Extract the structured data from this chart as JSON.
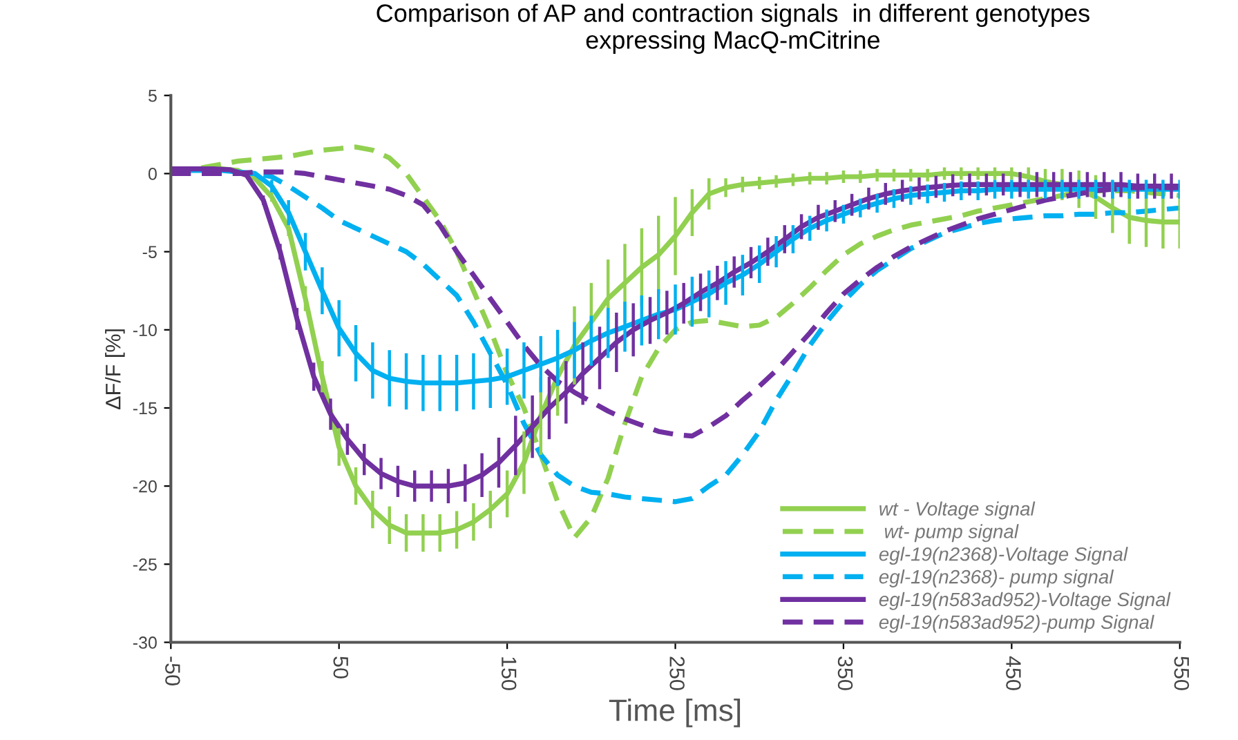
{
  "chart_data": {
    "type": "line",
    "title": "Comparison of AP and contraction signals  in different genotypes\nexpressing MacQ-mCitrine",
    "xlabel": "Time [ms]",
    "ylabel": "ΔF/F [%]",
    "x": [
      -50,
      -40,
      -30,
      -20,
      -10,
      0,
      10,
      20,
      30,
      40,
      50,
      60,
      70,
      80,
      90,
      100,
      110,
      120,
      130,
      140,
      150,
      160,
      170,
      180,
      190,
      200,
      210,
      220,
      230,
      240,
      250,
      260,
      270,
      280,
      290,
      300,
      310,
      320,
      330,
      340,
      350,
      360,
      370,
      380,
      390,
      400,
      410,
      420,
      430,
      440,
      450,
      460,
      470,
      480,
      490,
      500,
      510,
      520,
      530,
      540,
      550
    ],
    "xlim": [
      -50,
      550
    ],
    "xticks": [
      -50,
      50,
      150,
      250,
      350,
      450,
      550
    ],
    "ylim": [
      -30,
      5
    ],
    "yticks": [
      5,
      0,
      -5,
      -10,
      -15,
      -20,
      -25,
      -30
    ],
    "grid": false,
    "legend": "bottom right",
    "series": [
      {
        "name": "wt - Voltage signal",
        "color": "#92d050",
        "line_style": "solid",
        "values": [
          0.3,
          0.3,
          0.3,
          0.3,
          0.2,
          -0.3,
          -1.5,
          -3.5,
          -8,
          -13,
          -17.5,
          -20,
          -21.5,
          -22.5,
          -23,
          -23,
          -23,
          -22.8,
          -22.3,
          -21.5,
          -20.5,
          -18.5,
          -15.5,
          -13,
          -11,
          -9.5,
          -8,
          -7,
          -6,
          -5.2,
          -4,
          -2.5,
          -1.3,
          -0.9,
          -0.7,
          -0.6,
          -0.5,
          -0.4,
          -0.3,
          -0.3,
          -0.2,
          -0.2,
          -0.1,
          -0.1,
          -0.1,
          -0.1,
          0,
          0,
          0,
          0,
          0,
          -0.2,
          -0.5,
          -0.7,
          -1,
          -1.5,
          -2.2,
          -2.8,
          -3,
          -3.1,
          -3.1
        ],
        "errors": [
          null,
          null,
          null,
          null,
          null,
          null,
          0.3,
          0.5,
          0.8,
          1,
          1.2,
          1.2,
          1.2,
          1.2,
          1.2,
          1.2,
          1.2,
          1.2,
          1.2,
          1.2,
          1.5,
          2,
          2.5,
          2.5,
          2.5,
          2.5,
          2.5,
          2.5,
          2.5,
          2.5,
          2.5,
          1.5,
          1,
          0.6,
          0.5,
          0.4,
          0.4,
          0.4,
          0.4,
          0.4,
          0.4,
          0.4,
          0.4,
          0.4,
          0.4,
          0.4,
          0.4,
          0.4,
          0.4,
          0.4,
          0.4,
          0.6,
          0.8,
          1,
          1.2,
          1.4,
          1.6,
          1.7,
          1.7,
          1.7,
          1.7
        ]
      },
      {
        "name": " wt- pump signal",
        "color": "#92d050",
        "line_style": "dashed",
        "values": [
          0,
          0.2,
          0.4,
          0.6,
          0.8,
          0.9,
          1,
          1.1,
          1.3,
          1.5,
          1.6,
          1.7,
          1.5,
          1,
          0,
          -1.5,
          -3,
          -5,
          -7.5,
          -10,
          -12.8,
          -15,
          -18,
          -21,
          -23.3,
          -22,
          -19.5,
          -16,
          -13,
          -11.2,
          -10,
          -9.5,
          -9.4,
          -9.6,
          -9.8,
          -9.7,
          -9.2,
          -8.3,
          -7.3,
          -6.2,
          -5.2,
          -4.5,
          -4,
          -3.6,
          -3.3,
          -3.1,
          -2.9,
          -2.7,
          -2.4,
          -2.2,
          -2,
          -1.8,
          -1.6,
          -1.4,
          -1.2,
          -1.1,
          -1.1,
          -1.1,
          -1.2,
          -1.3,
          -1.4
        ]
      },
      {
        "name": "egl-19(n2368)-Voltage Signal",
        "color": "#00b0f0",
        "line_style": "solid",
        "values": [
          0.2,
          0.2,
          0.2,
          0.2,
          0.1,
          0,
          -0.8,
          -2.5,
          -5,
          -7.5,
          -9.9,
          -11.5,
          -12.6,
          -13.1,
          -13.3,
          -13.4,
          -13.4,
          -13.4,
          -13.3,
          -13.2,
          -13,
          -12.6,
          -12.2,
          -11.8,
          -11.3,
          -10.7,
          -10.2,
          -9.8,
          -9.4,
          -9,
          -8.7,
          -8.2,
          -7.7,
          -7,
          -6.5,
          -5.8,
          -5,
          -4.2,
          -3.5,
          -3,
          -2.6,
          -2.2,
          -1.9,
          -1.6,
          -1.4,
          -1.3,
          -1.2,
          -1.1,
          -1.1,
          -1,
          -1,
          -1,
          -1,
          -1,
          -1,
          -1,
          -1,
          -1,
          -1,
          -1,
          -1
        ],
        "errors": [
          null,
          null,
          null,
          null,
          null,
          null,
          0.4,
          0.8,
          1.2,
          1.5,
          1.8,
          1.8,
          1.8,
          1.8,
          1.8,
          1.8,
          1.8,
          1.8,
          1.8,
          1.8,
          1.8,
          1.8,
          1.8,
          1.8,
          1.8,
          1.6,
          1.6,
          1.6,
          1.6,
          1.6,
          1.6,
          1.6,
          1.5,
          1.4,
          1.3,
          1.2,
          1,
          0.9,
          0.8,
          0.7,
          0.6,
          0.6,
          0.6,
          0.6,
          0.6,
          0.6,
          0.6,
          0.6,
          0.6,
          0.6,
          0.6,
          0.6,
          0.6,
          0.6,
          0.6,
          0.6,
          0.6,
          0.6,
          0.6,
          0.6,
          0.6
        ]
      },
      {
        "name": "egl-19(n2368)- pump signal",
        "color": "#00b0f0",
        "line_style": "dashed",
        "values": [
          0,
          0,
          0,
          0,
          0,
          0,
          -0.2,
          -0.8,
          -1.5,
          -2.2,
          -3,
          -3.5,
          -4,
          -4.5,
          -5,
          -5.8,
          -6.8,
          -7.8,
          -9.5,
          -11.5,
          -13.5,
          -16,
          -18,
          -19.3,
          -20,
          -20.4,
          -20.5,
          -20.7,
          -20.8,
          -20.9,
          -21,
          -20.8,
          -20,
          -19.3,
          -18,
          -16.5,
          -14.5,
          -12.8,
          -11,
          -9.5,
          -8.2,
          -7.1,
          -6.2,
          -5.5,
          -4.8,
          -4.3,
          -3.8,
          -3.5,
          -3.2,
          -3,
          -2.9,
          -2.8,
          -2.7,
          -2.7,
          -2.6,
          -2.6,
          -2.5,
          -2.5,
          -2.4,
          -2.3,
          -2.2
        ]
      },
      {
        "name": "egl-19(n583ad952)-Voltage Signal",
        "color": "#7030a0",
        "line_style": "solid",
        "x": [
          -50,
          -45,
          -35,
          -25,
          -15,
          -5,
          5,
          15,
          25,
          35,
          45,
          55,
          65,
          75,
          85,
          95,
          105,
          115,
          125,
          135,
          145,
          155,
          165,
          175,
          185,
          195,
          205,
          215,
          225,
          235,
          245,
          255,
          265,
          275,
          285,
          295,
          305,
          315,
          325,
          335,
          345,
          355,
          365,
          375,
          385,
          395,
          405,
          415,
          425,
          435,
          445,
          455,
          465,
          475,
          485,
          495,
          505,
          515,
          525,
          535,
          545,
          550
        ],
        "values": [
          0.3,
          0.3,
          0.3,
          0.3,
          0.25,
          -0.1,
          -1.7,
          -5,
          -9.3,
          -13,
          -15.4,
          -17,
          -18.3,
          -19.2,
          -19.7,
          -20,
          -20,
          -20,
          -19.8,
          -19.3,
          -18.5,
          -17.4,
          -16.2,
          -15,
          -14,
          -12.8,
          -11.8,
          -10.8,
          -10,
          -9.4,
          -8.9,
          -8.3,
          -7.6,
          -7,
          -6.3,
          -5.7,
          -5,
          -4.2,
          -3.4,
          -2.8,
          -2.4,
          -2,
          -1.6,
          -1.3,
          -1.1,
          -0.95,
          -0.85,
          -0.75,
          -0.7,
          -0.7,
          -0.7,
          -0.7,
          -0.7,
          -0.7,
          -0.7,
          -0.7,
          -0.7,
          -0.7,
          -0.8,
          -0.8,
          -0.8,
          -0.8
        ],
        "errors": [
          null,
          null,
          null,
          null,
          null,
          null,
          0.3,
          0.5,
          0.7,
          0.9,
          1,
          1,
          1,
          1,
          1,
          1,
          1,
          1.1,
          1.2,
          1.4,
          1.6,
          1.9,
          2,
          2,
          2,
          2,
          2,
          1.9,
          1.7,
          1.5,
          1.4,
          1.3,
          1.2,
          1.1,
          1,
          1,
          0.9,
          0.9,
          0.8,
          0.8,
          0.7,
          0.7,
          0.7,
          0.7,
          0.7,
          0.7,
          0.7,
          0.7,
          0.7,
          0.7,
          0.7,
          0.8,
          0.8,
          0.8,
          0.8,
          0.8,
          0.8,
          0.8,
          0.8,
          0.8,
          0.8,
          null
        ]
      },
      {
        "name": "egl-19(n583ad952)-pump Signal",
        "color": "#7030a0",
        "line_style": "dashed",
        "values": [
          0,
          0,
          0,
          0,
          0,
          0.1,
          0.1,
          0.1,
          0,
          -0.2,
          -0.4,
          -0.6,
          -0.8,
          -1,
          -1.4,
          -2,
          -3.3,
          -5,
          -6.5,
          -8,
          -9.5,
          -11,
          -12.3,
          -13.3,
          -14,
          -14.6,
          -15.2,
          -15.7,
          -16.1,
          -16.5,
          -16.7,
          -16.8,
          -16.2,
          -15.5,
          -14.5,
          -13.6,
          -12.6,
          -11.4,
          -10.2,
          -8.9,
          -7.7,
          -6.8,
          -6,
          -5.3,
          -4.7,
          -4.2,
          -3.7,
          -3.3,
          -2.9,
          -2.6,
          -2.3,
          -2,
          -1.7,
          -1.5,
          -1.3,
          -1.1,
          -1,
          -0.9,
          -0.9,
          -0.9,
          -0.9
        ]
      }
    ]
  }
}
